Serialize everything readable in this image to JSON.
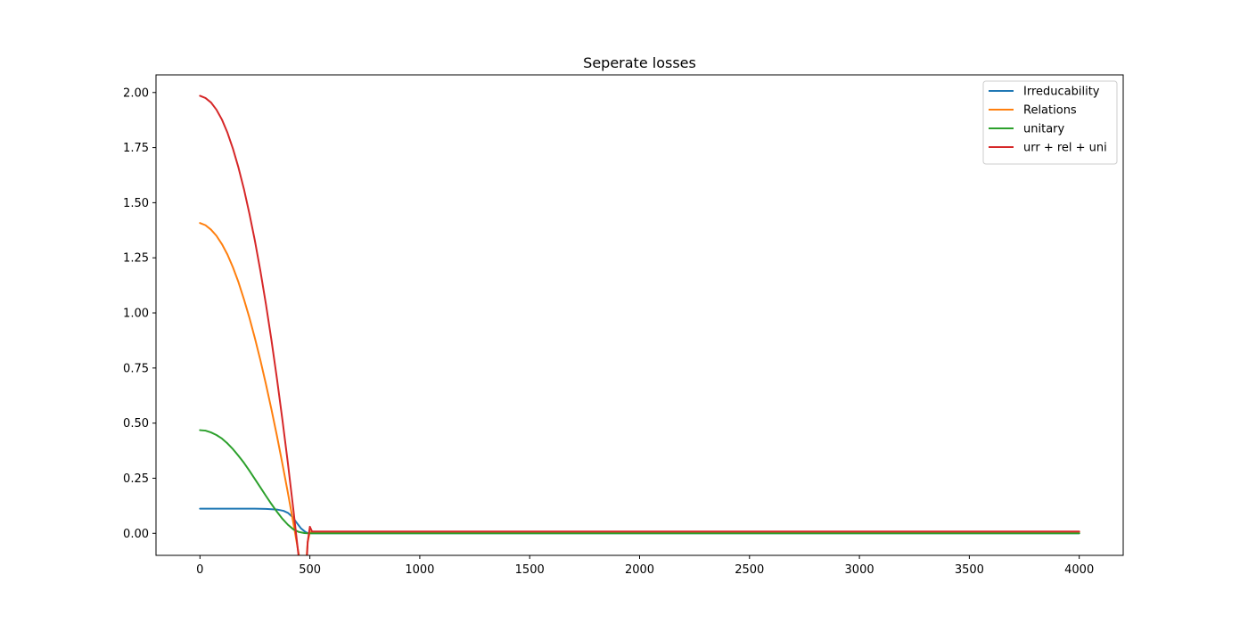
{
  "chart_data": {
    "type": "line",
    "title": "Seperate losses",
    "xlabel": "",
    "ylabel": "",
    "xlim": [
      -200,
      4200
    ],
    "ylim": [
      -0.1,
      2.08
    ],
    "x_ticks": [
      0,
      500,
      1000,
      1500,
      2000,
      2500,
      3000,
      3500,
      4000
    ],
    "x_tick_labels": [
      "0",
      "500",
      "1000",
      "1500",
      "2000",
      "2500",
      "3000",
      "3500",
      "4000"
    ],
    "y_ticks": [
      0.0,
      0.25,
      0.5,
      0.75,
      1.0,
      1.25,
      1.5,
      1.75,
      2.0
    ],
    "y_tick_labels": [
      "0.00",
      "0.25",
      "0.50",
      "0.75",
      "1.00",
      "1.25",
      "1.50",
      "1.75",
      "2.00"
    ],
    "grid": false,
    "legend_position": "top-right",
    "series": [
      {
        "name": "Irreducability",
        "color": "#1f77b4",
        "x": [
          0,
          50,
          100,
          150,
          200,
          250,
          300,
          350,
          380,
          400,
          420,
          440,
          460,
          480,
          490,
          500,
          600,
          1000,
          2000,
          3000,
          4000
        ],
        "y": [
          0.112,
          0.112,
          0.112,
          0.112,
          0.112,
          0.112,
          0.111,
          0.108,
          0.102,
          0.093,
          0.075,
          0.048,
          0.022,
          0.006,
          0.001,
          0.0,
          0.0,
          0.0,
          0.0,
          0.0,
          0.0
        ]
      },
      {
        "name": "Relations",
        "color": "#ff7f0e",
        "x": [
          0,
          25,
          50,
          75,
          100,
          125,
          150,
          175,
          200,
          225,
          250,
          275,
          300,
          325,
          350,
          375,
          400,
          425,
          450,
          475,
          490,
          500,
          510,
          600,
          1000,
          2000,
          3000,
          4000
        ],
        "y": [
          1.408,
          1.398,
          1.378,
          1.35,
          1.312,
          1.265,
          1.207,
          1.14,
          1.062,
          0.978,
          0.885,
          0.785,
          0.677,
          0.563,
          0.443,
          0.316,
          0.184,
          0.046,
          -0.098,
          -0.248,
          -0.04,
          0.006,
          0.006,
          0.006,
          0.006,
          0.006,
          0.006,
          0.006
        ]
      },
      {
        "name": "unitary",
        "color": "#2ca02c",
        "x": [
          0,
          25,
          50,
          75,
          100,
          125,
          150,
          175,
          200,
          225,
          250,
          275,
          300,
          325,
          350,
          375,
          400,
          425,
          450,
          475,
          490,
          500,
          600,
          1000,
          2000,
          3000,
          4000
        ],
        "y": [
          0.468,
          0.466,
          0.458,
          0.446,
          0.43,
          0.408,
          0.382,
          0.352,
          0.32,
          0.284,
          0.246,
          0.208,
          0.17,
          0.133,
          0.098,
          0.066,
          0.039,
          0.018,
          0.006,
          0.001,
          0.0,
          0.0,
          0.0,
          0.0,
          0.0,
          0.0,
          0.0
        ]
      },
      {
        "name": "urr + rel + uni",
        "color": "#d62728",
        "x": [
          0,
          25,
          50,
          75,
          100,
          125,
          150,
          175,
          200,
          225,
          250,
          275,
          300,
          325,
          350,
          375,
          400,
          425,
          450,
          475,
          490,
          500,
          510,
          600,
          1000,
          2000,
          3000,
          4000
        ],
        "y": [
          1.985,
          1.975,
          1.955,
          1.922,
          1.877,
          1.818,
          1.745,
          1.66,
          1.562,
          1.45,
          1.327,
          1.19,
          1.04,
          0.878,
          0.703,
          0.516,
          0.318,
          0.107,
          -0.115,
          -0.348,
          -0.04,
          0.03,
          0.008,
          0.008,
          0.008,
          0.008,
          0.008,
          0.008
        ]
      }
    ]
  }
}
